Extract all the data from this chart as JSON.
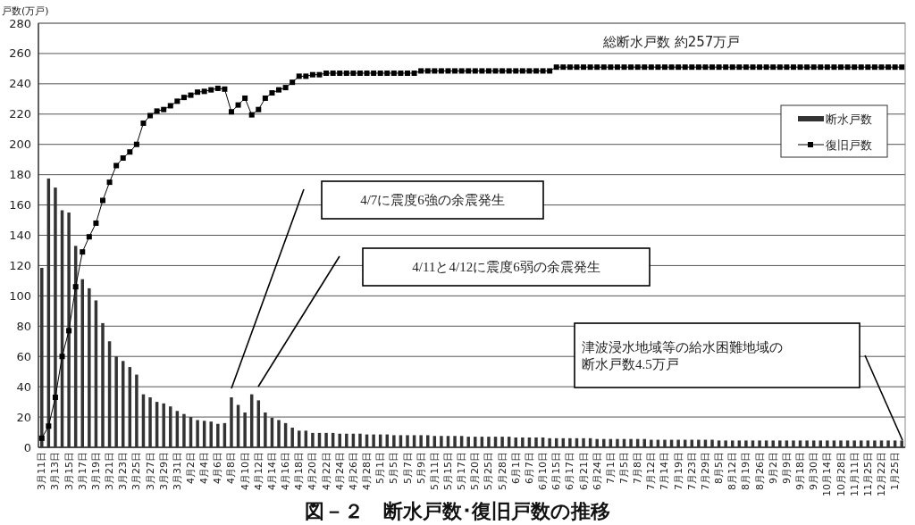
{
  "chart_data": {
    "type": "bar",
    "title": "図－２　断水戸数･復旧戸数の推移",
    "ylabel": "戸数(万戸)",
    "categories": [
      "3月11日",
      null,
      "3月13日",
      null,
      "3月15日",
      null,
      "3月17日",
      null,
      "3月19日",
      null,
      "3月21日",
      null,
      "3月23日",
      null,
      "3月25日",
      null,
      "3月27日",
      null,
      "3月29日",
      null,
      "3月31日",
      null,
      "4月2日",
      null,
      "4月4日",
      null,
      "4月6日",
      null,
      "4月8日",
      null,
      "4月10日",
      null,
      "4月12日",
      null,
      "4月14日",
      null,
      "4月16日",
      null,
      "4月18日",
      null,
      "4月20日",
      null,
      "4月22日",
      null,
      "4月24日",
      null,
      "4月26日",
      null,
      "4月28日",
      null,
      "5月1日",
      null,
      "5月5日",
      null,
      "5月7日",
      null,
      "5月9日",
      null,
      "5月11日",
      null,
      "5月15日",
      null,
      "5月17日",
      null,
      "5月20日",
      null,
      "5月25日",
      null,
      "5月28日",
      null,
      "6月1日",
      null,
      "6月7日",
      null,
      "6月10日",
      null,
      "6月15日",
      null,
      "6月17日",
      null,
      "6月21日",
      null,
      "6月24日",
      null,
      "7月1日",
      null,
      "7月5日",
      null,
      "7月8日",
      null,
      "7月12日",
      null,
      "7月14日",
      null,
      "7月19日",
      null,
      "7月23日",
      null,
      "7月29日",
      null,
      "8月5日",
      null,
      "8月12日",
      null,
      "8月19日",
      null,
      "8月26日",
      null,
      "9月2日",
      null,
      "9月9日",
      null,
      "9月18日",
      null,
      "9月30日",
      null,
      "10月14日",
      null,
      "10月28日",
      null,
      "11月11日",
      null,
      "11月25日",
      null,
      "12月22日",
      null,
      "1月25日",
      null
    ],
    "series": [
      {
        "name": "断水戸数",
        "color": "#333333",
        "values": [
          118.5,
          177.5,
          171.5,
          156.5,
          155,
          133,
          111,
          105,
          97,
          82,
          70,
          60,
          57,
          53,
          48,
          35,
          33,
          30,
          29,
          27,
          24,
          22,
          20,
          18,
          17.5,
          17,
          15.5,
          16,
          33,
          28,
          23,
          35,
          31,
          23,
          19.5,
          18,
          16,
          13,
          11,
          11,
          9.5,
          9.5,
          9.5,
          9.5,
          9,
          9,
          9,
          9,
          8.5,
          8.5,
          8.5,
          8.5,
          8,
          8,
          8,
          8,
          8,
          8,
          7.5,
          7.5,
          7.5,
          7.5,
          7.5,
          7,
          7,
          7,
          7,
          7,
          7,
          7,
          6.5,
          6.5,
          6.5,
          6.5,
          6.5,
          6,
          6,
          6,
          6,
          6,
          6,
          6,
          5.5,
          5.5,
          5.5,
          5.5,
          5.5,
          5.5,
          5.5,
          5.5,
          5,
          5,
          5,
          5,
          5,
          5,
          5,
          5,
          5,
          5,
          4.5,
          4.5,
          4.5,
          4.5,
          4.5,
          4.5,
          4.5,
          4.5,
          4.5,
          4.5,
          4.5,
          4.5,
          4.5,
          4.5,
          4.5,
          4.5,
          4.5,
          4.5,
          4.5,
          4.5,
          4.5,
          4.5,
          4.5,
          4.5,
          4.5,
          4.5,
          4.5,
          4.5
        ]
      },
      {
        "name": "復旧戸数",
        "type": "line",
        "color": "#000000",
        "values": [
          6,
          14,
          33,
          60,
          77,
          106,
          129,
          139,
          148,
          163,
          175,
          186,
          191,
          195,
          200,
          214,
          219,
          222,
          223,
          225.5,
          228.5,
          231,
          232.5,
          234.5,
          235,
          236,
          237,
          236.5,
          221.5,
          226,
          230.5,
          219.5,
          223,
          230.5,
          234,
          236,
          237.5,
          241,
          245,
          245,
          246,
          246,
          247,
          247,
          247,
          247,
          247,
          247,
          247,
          247,
          247,
          247,
          247,
          247,
          247,
          247,
          248.5,
          248.5,
          248.5,
          248.5,
          248.5,
          248.5,
          248.5,
          248.5,
          248.5,
          248.5,
          248.5,
          248.5,
          248.5,
          248.5,
          248.5,
          248.5,
          248.5,
          248.5,
          248.5,
          248.5,
          251,
          251,
          251,
          251,
          251,
          251,
          251,
          251,
          251,
          251,
          251,
          251,
          251,
          251,
          251,
          251,
          251,
          251,
          251,
          251,
          251,
          251,
          251,
          251,
          251,
          251,
          251,
          251,
          251,
          251,
          251,
          251,
          251,
          251,
          251,
          251,
          251,
          251,
          251,
          251,
          251,
          251,
          251,
          251,
          251,
          251,
          251,
          251,
          251,
          251,
          251,
          251
        ]
      }
    ],
    "ylim": [
      0,
      280
    ],
    "yticks": [
      0,
      20,
      40,
      60,
      80,
      100,
      120,
      140,
      160,
      180,
      200,
      220,
      240,
      260,
      280
    ],
    "grid": "y",
    "legend": "top right",
    "marker": "square",
    "annotations": [
      "総断水戸数  約257万戸",
      "4/7に震度6強の余震発生",
      "4/11と4/12に震度6弱の余震発生",
      "津波浸水地域等の給水困難地域の断水戸数4.5万戸"
    ]
  }
}
